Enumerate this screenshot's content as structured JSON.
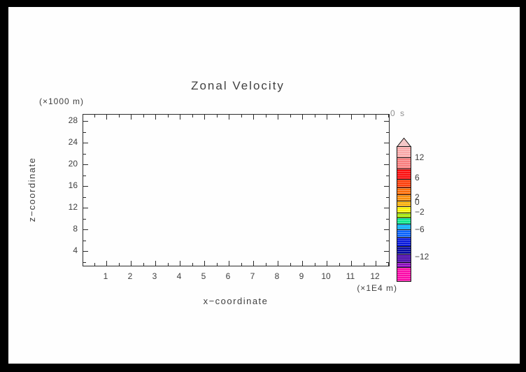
{
  "window": {
    "border_color": "#000000",
    "canvas_color": "#fefefe"
  },
  "chart_data": {
    "type": "contour_plot_frame",
    "title": "Zonal Velocity",
    "time_stamp": "0 s",
    "plot_area_empty": true,
    "grid": "off",
    "x_axis": {
      "label": "x−coordinate",
      "unit": "(×1E4 m)",
      "tick_values": [
        "1",
        "2",
        "3",
        "4",
        "5",
        "6",
        "7",
        "8",
        "9",
        "10",
        "11",
        "12"
      ]
    },
    "y_axis": {
      "label": "z−coordinate",
      "unit": "(×1000 m)",
      "tick_values": [
        "28",
        "24",
        "20",
        "16",
        "12",
        "8",
        "4"
      ]
    },
    "colorbar": {
      "position": "right",
      "cap_color": "#F5C8C8",
      "segments": [
        {
          "color": "#F9A9A9",
          "h": 15
        },
        {
          "color": "#F87E7E",
          "h": 15
        },
        {
          "color": "#FB0D0D",
          "h": 14
        },
        {
          "color": "#FB3D08",
          "h": 11
        },
        {
          "color": "#FA6C08",
          "h": 9
        },
        {
          "color": "#FA8D0A",
          "h": 8
        },
        {
          "color": "#F9AE08",
          "h": 7
        },
        {
          "color": "#FBF306",
          "h": 8
        },
        {
          "color": "#A3E30A",
          "h": 6
        },
        {
          "color": "#0BE88E",
          "h": 8
        },
        {
          "color": "#0BADF9",
          "h": 7
        },
        {
          "color": "#0B63FB",
          "h": 10
        },
        {
          "color": "#0718DB",
          "h": 12
        },
        {
          "color": "#0609A0",
          "h": 10
        },
        {
          "color": "#4806A8",
          "h": 11
        },
        {
          "color": "#8A08BC",
          "h": 6
        },
        {
          "color": "#FB0BA9",
          "h": 19
        }
      ],
      "labels": [
        {
          "text": "12",
          "after_segment": 0
        },
        {
          "text": "6",
          "after_segment": 2
        },
        {
          "text": "2",
          "after_segment": 5
        },
        {
          "text": "0",
          "after_segment": 6
        },
        {
          "text": "−2",
          "after_segment": 8
        },
        {
          "text": "−6",
          "after_segment": 11
        },
        {
          "text": "−12",
          "after_segment": 15
        }
      ]
    }
  }
}
